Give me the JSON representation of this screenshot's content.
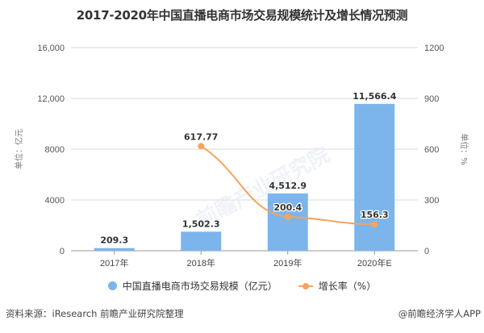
{
  "title": "2017-2020年中国直播电商市场交易规模统计及增长情况预测",
  "chart_data": {
    "type": "bar",
    "title": "2017-2020年中国直播电商市场交易规模统计及增长情况预测",
    "categories": [
      "2017年",
      "2018年",
      "2019年",
      "2020年E"
    ],
    "series": [
      {
        "name": "中国直播电商市场交易规模（亿元）",
        "type": "bar",
        "axis": "left",
        "color": "#7cb5ec",
        "values": [
          209.3,
          1502.3,
          4512.9,
          11566.4
        ],
        "labels": [
          "209.3",
          "1,502.3",
          "4,512.9",
          "11,566.4"
        ]
      },
      {
        "name": "增长率（%）",
        "type": "line",
        "axis": "right",
        "color": "#f7a35c",
        "values": [
          null,
          617.77,
          200.4,
          156.3
        ],
        "labels": [
          "",
          "617.77",
          "200.4",
          "156.3"
        ]
      }
    ],
    "ylabel": "单位：亿元",
    "ylabel_right": "单位：%",
    "ylim": [
      0,
      16000
    ],
    "ylim_right": [
      0,
      1200
    ],
    "yticks": [
      "0",
      "4000",
      "8000",
      "12,000",
      "16,000"
    ],
    "yticks_right": [
      "0",
      "300",
      "600",
      "900",
      "1200"
    ],
    "grid": true,
    "legend_position": "bottom"
  },
  "axes": {
    "left_unit": "单位：亿元",
    "right_unit": "单位：%"
  },
  "legend": {
    "bar_label": "中国直播电商市场交易规模（亿元）",
    "line_label": "增长率（%）"
  },
  "footer": {
    "source": "资料来源：iResearch 前瞻产业研究院整理",
    "credit": "@前瞻经济学人APP"
  },
  "colors": {
    "bar": "#7cb5ec",
    "line": "#f7a35c",
    "grid": "#d8d8d8"
  }
}
